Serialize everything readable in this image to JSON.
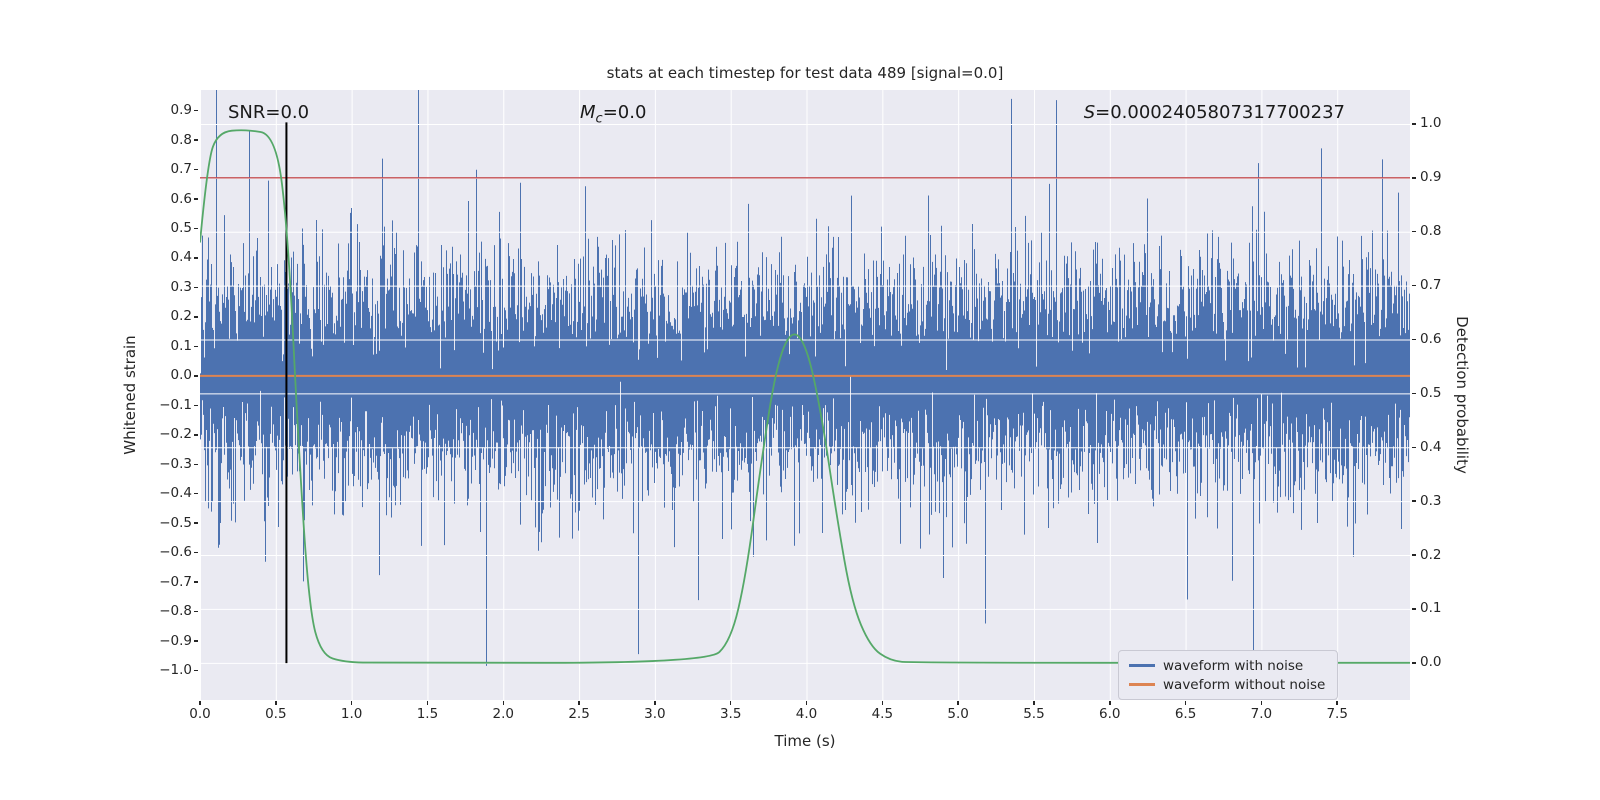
{
  "chart_data": {
    "type": "line",
    "title": "stats at each timestep for test data 489 [signal=0.0]",
    "xlabel": "Time (s)",
    "ylabel_left": "Whitened strain",
    "ylabel_right": "Detection probability",
    "plot_bg": "#eaeaf2",
    "grid_color": "#ffffff",
    "text_color": "#262626",
    "xlim": [
      0,
      7.98
    ],
    "ylim_left": [
      -1.1,
      0.97
    ],
    "ylim_right": [
      -0.069,
      1.063
    ],
    "xticks": [
      0.0,
      0.5,
      1.0,
      1.5,
      2.0,
      2.5,
      3.0,
      3.5,
      4.0,
      4.5,
      5.0,
      5.5,
      6.0,
      6.5,
      7.0,
      7.5
    ],
    "yticks_left": [
      0.9,
      0.8,
      0.7,
      0.6,
      0.5,
      0.4,
      0.3,
      0.2,
      0.1,
      0.0,
      -0.1,
      -0.2,
      -0.3,
      -0.4,
      -0.5,
      -0.6,
      -0.7,
      -0.8,
      -0.9,
      -1.0
    ],
    "yticks_right": [
      1.0,
      0.9,
      0.8,
      0.7,
      0.6,
      0.5,
      0.4,
      0.3,
      0.2,
      0.1,
      0.0
    ],
    "series": [
      {
        "name": "waveform with noise",
        "color": "#4c72b0",
        "axis": "left",
        "kind": "noise_minmax",
        "seed": 489,
        "std": 0.17,
        "spike_prob": 0.025,
        "spike_std": 0.34,
        "samples_per_column": 10
      },
      {
        "name": "waveform without noise",
        "color": "#dd8452",
        "axis": "left",
        "kind": "constant",
        "value": 0.0
      },
      {
        "name": "detection probability",
        "color": "#55a868",
        "axis": "right",
        "kind": "keypoints",
        "points": [
          [
            0.0,
            0.78
          ],
          [
            0.05,
            0.93
          ],
          [
            0.12,
            0.985
          ],
          [
            0.3,
            0.99
          ],
          [
            0.5,
            0.98
          ],
          [
            0.58,
            0.8
          ],
          [
            0.65,
            0.4
          ],
          [
            0.72,
            0.1
          ],
          [
            0.8,
            0.015
          ],
          [
            0.95,
            0.001
          ],
          [
            1.2,
            0.0
          ],
          [
            3.35,
            0.0
          ],
          [
            3.5,
            0.04
          ],
          [
            3.6,
            0.16
          ],
          [
            3.7,
            0.37
          ],
          [
            3.8,
            0.55
          ],
          [
            3.9,
            0.62
          ],
          [
            4.0,
            0.59
          ],
          [
            4.1,
            0.46
          ],
          [
            4.2,
            0.27
          ],
          [
            4.3,
            0.11
          ],
          [
            4.42,
            0.03
          ],
          [
            4.55,
            0.004
          ],
          [
            4.7,
            0.0
          ],
          [
            7.98,
            0.0
          ]
        ]
      }
    ],
    "threshold_line": {
      "axis": "right",
      "value": 0.9,
      "color": "#c44e52"
    },
    "vline": {
      "x": 0.57,
      "color": "#000000",
      "y_from_strain": 0.86,
      "y_to_strain": -0.975
    },
    "annotations": {
      "snr": "SNR=0.0",
      "mc": {
        "italic": "M",
        "sub": "c",
        "rest": "=0.0"
      },
      "s": {
        "italic": "S",
        "rest": "=0.0002405807317700237"
      }
    },
    "legend": [
      {
        "label": "waveform with noise",
        "color": "#4c72b0"
      },
      {
        "label": "waveform without noise",
        "color": "#dd8452"
      }
    ]
  }
}
